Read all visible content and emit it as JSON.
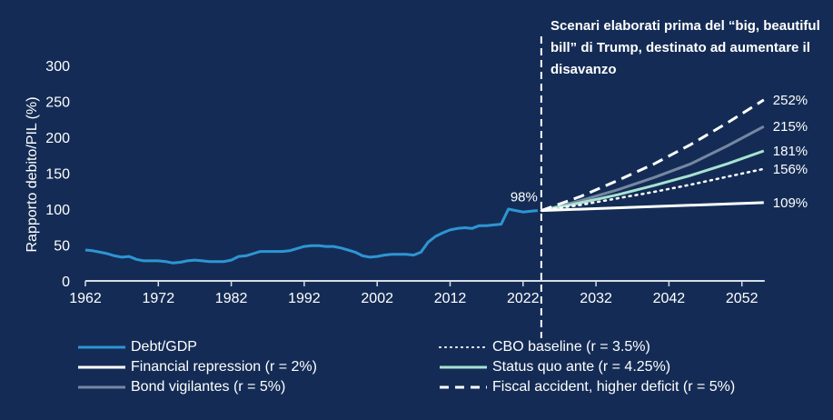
{
  "chart_data": {
    "type": "line",
    "title": "",
    "annotation": "Scenari elaborati prima del “big, beautiful bill” di Trump, destinato ad aumentare il disavanzo",
    "xlabel": "",
    "ylabel": "Rapporto debito/PIL (%)",
    "xlim": [
      1962,
      2055
    ],
    "ylim": [
      0,
      300
    ],
    "yticks": [
      0,
      50,
      100,
      150,
      200,
      250,
      300
    ],
    "xticks": [
      1962,
      1972,
      1982,
      1992,
      2002,
      2012,
      2022,
      2032,
      2042,
      2052
    ],
    "grid": false,
    "divider_year": 2024.5,
    "start_label": "98%",
    "series": [
      {
        "name": "Debt/GDP",
        "color": "#2e95d3",
        "style": "solid",
        "x": [
          1962,
          1963,
          1964,
          1965,
          1966,
          1967,
          1968,
          1969,
          1970,
          1971,
          1972,
          1973,
          1974,
          1975,
          1976,
          1977,
          1978,
          1979,
          1980,
          1981,
          1982,
          1983,
          1984,
          1985,
          1986,
          1987,
          1988,
          1989,
          1990,
          1991,
          1992,
          1993,
          1994,
          1995,
          1996,
          1997,
          1998,
          1999,
          2000,
          2001,
          2002,
          2003,
          2004,
          2005,
          2006,
          2007,
          2008,
          2009,
          2010,
          2011,
          2012,
          2013,
          2014,
          2015,
          2016,
          2017,
          2018,
          2019,
          2020,
          2021,
          2022,
          2023,
          2024
        ],
        "values": [
          43,
          42,
          40,
          38,
          35,
          33,
          34,
          30,
          28,
          28,
          28,
          27,
          25,
          26,
          28,
          29,
          28,
          27,
          27,
          27,
          29,
          34,
          35,
          38,
          41,
          41,
          41,
          41,
          42,
          45,
          48,
          49,
          49,
          48,
          48,
          46,
          43,
          40,
          35,
          33,
          34,
          36,
          37,
          37,
          37,
          36,
          40,
          54,
          62,
          67,
          71,
          73,
          74,
          73,
          77,
          77,
          78,
          79,
          100,
          98,
          96,
          97,
          98
        ]
      },
      {
        "name": "Financial repression (r = 2%)",
        "color": "#ffffff",
        "style": "solid",
        "x": [
          2024.5,
          2055
        ],
        "values": [
          98,
          109
        ],
        "end_label": "109%"
      },
      {
        "name": "Bond vigilantes (r = 5%)",
        "color": "#7687a3",
        "style": "solid",
        "x": [
          2024.5,
          2030,
          2035,
          2040,
          2045,
          2050,
          2055
        ],
        "values": [
          98,
          112,
          127,
          144,
          163,
          188,
          215
        ],
        "end_label": "215%"
      },
      {
        "name": "CBO baseline (r = 3.5%)",
        "color": "#ffffff",
        "style": "dotted",
        "x": [
          2024.5,
          2030,
          2035,
          2040,
          2045,
          2050,
          2055
        ],
        "values": [
          98,
          106,
          115,
          124,
          134,
          145,
          156
        ],
        "end_label": "156%"
      },
      {
        "name": "Status quo ante (r = 4.25%)",
        "color": "#a6e3d2",
        "style": "solid",
        "x": [
          2024.5,
          2030,
          2035,
          2040,
          2045,
          2050,
          2055
        ],
        "values": [
          98,
          109,
          120,
          133,
          147,
          163,
          181
        ],
        "end_label": "181%"
      },
      {
        "name": "Fiscal accident, higher deficit (r = 5%)",
        "color": "#ffffff",
        "style": "dashed",
        "x": [
          2024.5,
          2030,
          2035,
          2040,
          2045,
          2050,
          2055
        ],
        "values": [
          98,
          118,
          140,
          163,
          190,
          220,
          252
        ],
        "end_label": "252%"
      }
    ],
    "legend": {
      "placement": "bottom",
      "items": [
        {
          "label": "Debt/GDP",
          "series": 0
        },
        {
          "label": "CBO baseline (r = 3.5%)",
          "series": 3
        },
        {
          "label": "Financial repression (r = 2%)",
          "series": 1
        },
        {
          "label": "Status quo ante (r = 4.25%)",
          "series": 4
        },
        {
          "label": "Bond vigilantes (r = 5%)",
          "series": 2
        },
        {
          "label": "Fiscal accident, higher deficit (r = 5%)",
          "series": 5
        }
      ]
    }
  }
}
